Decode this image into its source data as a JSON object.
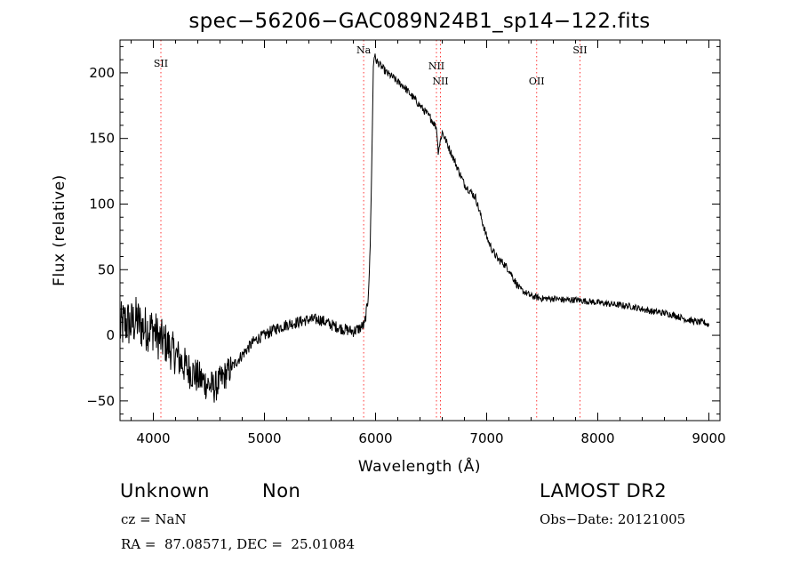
{
  "chart_data": {
    "type": "line",
    "title": "spec−56206−GAC089N24B1_sp14−122.fits",
    "xlabel": "Wavelength (Å)",
    "ylabel": "Flux (relative)",
    "xlim": [
      3700,
      9100
    ],
    "ylim": [
      -65,
      225
    ],
    "x_ticks": [
      4000,
      5000,
      6000,
      7000,
      8000,
      9000
    ],
    "y_ticks": [
      -50,
      0,
      50,
      100,
      150,
      200
    ],
    "grid": false,
    "series": [
      {
        "x": [
          3700,
          3750,
          3800,
          3850,
          3900,
          3950,
          4000,
          4050,
          4100,
          4150,
          4200,
          4250,
          4300,
          4350,
          4400,
          4450,
          4500,
          4550,
          4600,
          4650,
          4700,
          4750,
          4800,
          4850,
          4900,
          4950,
          5000,
          5100,
          5200,
          5300,
          5400,
          5500,
          5600,
          5700,
          5800,
          5850,
          5900,
          5930,
          5950,
          5970,
          5980,
          5990,
          6000,
          6050,
          6100,
          6150,
          6200,
          6250,
          6300,
          6350,
          6400,
          6450,
          6500,
          6550,
          6563,
          6600,
          6650,
          6700,
          6750,
          6800,
          6850,
          6900,
          6950,
          7000,
          7050,
          7100,
          7150,
          7200,
          7250,
          7300,
          7400,
          7500,
          7600,
          7700,
          7800,
          7900,
          8000,
          8100,
          8200,
          8300,
          8400,
          8500,
          8600,
          8700,
          8800,
          8900,
          8950,
          9000
        ],
        "y": [
          5,
          10,
          8,
          12,
          6,
          5,
          5,
          -3,
          -5,
          -10,
          -15,
          -20,
          -25,
          -28,
          -32,
          -35,
          -38,
          -40,
          -35,
          -30,
          -25,
          -20,
          -15,
          -10,
          -5,
          -2,
          0,
          5,
          8,
          10,
          12,
          12,
          8,
          5,
          3,
          5,
          8,
          25,
          60,
          150,
          205,
          215,
          210,
          205,
          200,
          197,
          193,
          190,
          185,
          180,
          175,
          170,
          165,
          158,
          140,
          155,
          145,
          135,
          125,
          115,
          110,
          105,
          90,
          75,
          65,
          58,
          55,
          50,
          42,
          35,
          30,
          28,
          28,
          27,
          27,
          26,
          25,
          24,
          23,
          22,
          20,
          18,
          17,
          15,
          12,
          10,
          10,
          8
        ]
      }
    ],
    "lines": [
      {
        "label": "SII",
        "x": 4068
      },
      {
        "label": "Na",
        "x": 5893
      },
      {
        "label": "NII",
        "x": 6548
      },
      {
        "label": "NII",
        "x": 6584
      },
      {
        "label": "OII",
        "x": 7450
      },
      {
        "label": "SII",
        "x": 7840
      }
    ],
    "colors": {
      "spectrum": "#000000",
      "line_marker": "#ff3333"
    }
  },
  "footer": {
    "class": "Unknown",
    "subclass": "Non",
    "survey": "LAMOST DR2",
    "cz": "cz = NaN",
    "obs_date": "Obs−Date: 20121005",
    "radec": "RA =  87.08571, DEC =  25.01084"
  }
}
